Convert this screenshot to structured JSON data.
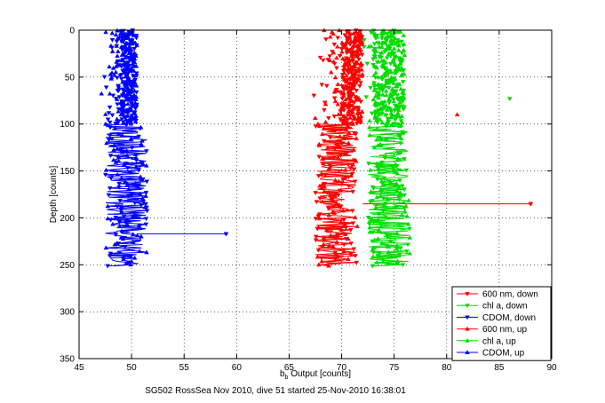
{
  "chart_data": {
    "type": "scatter",
    "xlabel_base": "b",
    "xlabel_sub": "b",
    "xlabel_rest": " Output [counts]",
    "ylabel": "Depth [counts]",
    "caption": "SG502 RossSea Nov 2010, dive 51 started 25-Nov-2010 16:38:01",
    "xlim": [
      45,
      90
    ],
    "ylim": [
      0,
      350
    ],
    "y_reversed": true,
    "grid": true,
    "legend_position": "bottom-right",
    "x_ticks": [
      45,
      50,
      55,
      60,
      65,
      70,
      75,
      80,
      85,
      90
    ],
    "y_ticks": [
      0,
      50,
      100,
      150,
      200,
      250,
      300,
      350
    ],
    "series": [
      {
        "name": "600 nm, down",
        "color": "#ff0000",
        "marker": "down",
        "band": [
          67,
          72
        ],
        "tail": [
          70,
          72
        ],
        "outliers": [
          [
            88,
            185
          ]
        ]
      },
      {
        "name": "chl a, down",
        "color": "#00dd00",
        "marker": "down",
        "band": [
          72,
          77
        ],
        "tail": [
          73,
          76
        ],
        "outliers": [
          [
            86,
            73
          ]
        ]
      },
      {
        "name": "CDOM, down",
        "color": "#0000ff",
        "marker": "down",
        "band": [
          47,
          52
        ],
        "tail": [
          49,
          50.5
        ],
        "outliers": [
          [
            59,
            217
          ]
        ]
      },
      {
        "name": "600 nm, up",
        "color": "#ff0000",
        "marker": "up",
        "band": [
          67,
          72
        ],
        "tail": [
          70,
          72
        ],
        "outliers": [
          [
            81,
            90
          ]
        ]
      },
      {
        "name": "chl a, up",
        "color": "#00dd00",
        "marker": "up",
        "band": [
          72,
          77
        ],
        "tail": [
          73,
          76
        ],
        "outliers": []
      },
      {
        "name": "CDOM, up",
        "color": "#0000ff",
        "marker": "up",
        "band": [
          47,
          52
        ],
        "tail": [
          49,
          50.5
        ],
        "outliers": []
      }
    ]
  }
}
